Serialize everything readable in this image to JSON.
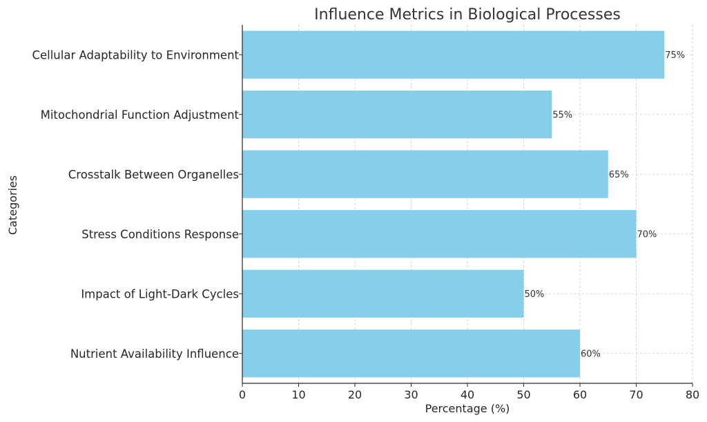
{
  "chart_data": {
    "type": "bar",
    "orientation": "horizontal",
    "title": "Influence Metrics in Biological Processes",
    "xlabel": "Percentage (%)",
    "ylabel": "Categories",
    "xlim": [
      0,
      80
    ],
    "xticks": [
      0,
      10,
      20,
      30,
      40,
      50,
      60,
      70,
      80
    ],
    "grid": true,
    "bar_color": "#87ceeb",
    "categories": [
      "Cellular Adaptability to Environment",
      "Mitochondrial Function Adjustment",
      "Crosstalk Between Organelles",
      "Stress Conditions Response",
      "Impact of Light-Dark Cycles",
      "Nutrient Availability Influence"
    ],
    "values": [
      75,
      55,
      65,
      70,
      50,
      60
    ],
    "value_labels": [
      "75%",
      "55%",
      "65%",
      "70%",
      "50%",
      "60%"
    ]
  }
}
